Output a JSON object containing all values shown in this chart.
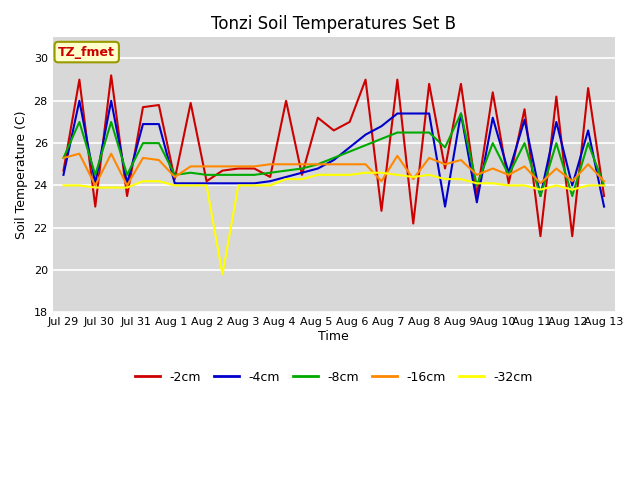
{
  "title": "Tonzi Soil Temperatures Set B",
  "xlabel": "Time",
  "ylabel": "Soil Temperature (C)",
  "ylim": [
    18,
    31
  ],
  "yticks": [
    18,
    20,
    22,
    24,
    26,
    28,
    30
  ],
  "annotation_text": "TZ_fmet",
  "annotation_color": "#cc0000",
  "annotation_bg": "#ffffcc",
  "annotation_border": "#999900",
  "fig_bg_color": "#ffffff",
  "plot_bg": "#d8d8d8",
  "series": {
    "-2cm": {
      "color": "#cc0000",
      "linewidth": 1.5,
      "values": [
        24.7,
        29.0,
        23.0,
        29.2,
        23.5,
        27.7,
        27.8,
        24.3,
        27.9,
        24.2,
        24.7,
        24.8,
        24.8,
        24.4,
        28.0,
        24.5,
        27.2,
        26.6,
        27.0,
        29.0,
        22.8,
        29.0,
        22.2,
        28.8,
        24.8,
        28.8,
        23.5,
        28.4,
        24.1,
        27.6,
        21.6,
        28.2,
        21.6,
        28.6,
        23.5
      ]
    },
    "-4cm": {
      "color": "#0000cc",
      "linewidth": 1.5,
      "values": [
        24.5,
        28.0,
        24.1,
        28.0,
        24.1,
        26.9,
        26.9,
        24.1,
        24.1,
        24.1,
        24.1,
        24.1,
        24.1,
        24.2,
        24.4,
        24.6,
        24.8,
        25.2,
        25.8,
        26.4,
        26.8,
        27.4,
        27.4,
        27.4,
        23.0,
        27.4,
        23.2,
        27.2,
        24.6,
        27.1,
        23.5,
        27.0,
        24.0,
        26.6,
        23.0
      ]
    },
    "-8cm": {
      "color": "#00aa00",
      "linewidth": 1.5,
      "values": [
        25.3,
        27.0,
        24.5,
        27.0,
        24.5,
        26.0,
        26.0,
        24.5,
        24.6,
        24.5,
        24.5,
        24.5,
        24.5,
        24.6,
        24.7,
        24.8,
        25.0,
        25.3,
        25.6,
        25.9,
        26.2,
        26.5,
        26.5,
        26.5,
        25.8,
        27.4,
        24.0,
        26.0,
        24.5,
        26.0,
        23.5,
        26.0,
        23.5,
        26.0,
        24.0
      ]
    },
    "-16cm": {
      "color": "#ff8800",
      "linewidth": 1.5,
      "values": [
        25.3,
        25.5,
        24.0,
        25.5,
        24.0,
        25.3,
        25.2,
        24.4,
        24.9,
        24.9,
        24.9,
        24.9,
        24.9,
        25.0,
        25.0,
        25.0,
        25.0,
        25.0,
        25.0,
        25.0,
        24.2,
        25.4,
        24.3,
        25.3,
        25.0,
        25.2,
        24.5,
        24.8,
        24.5,
        24.9,
        24.1,
        24.8,
        24.2,
        25.0,
        24.2
      ]
    },
    "-32cm": {
      "color": "#ffff00",
      "linewidth": 1.5,
      "values": [
        24.0,
        24.0,
        23.9,
        23.9,
        23.9,
        24.2,
        24.2,
        24.0,
        24.0,
        24.0,
        19.8,
        24.0,
        24.0,
        24.0,
        24.3,
        24.3,
        24.5,
        24.5,
        24.5,
        24.6,
        24.6,
        24.5,
        24.4,
        24.5,
        24.3,
        24.3,
        24.1,
        24.1,
        24.0,
        24.0,
        23.8,
        24.0,
        23.8,
        24.0,
        24.0
      ]
    }
  },
  "x_tick_labels": [
    "Jul 29",
    "Jul 30",
    "Jul 31",
    "Aug 1",
    "Aug 2",
    "Aug 3",
    "Aug 4",
    "Aug 5",
    "Aug 6",
    "Aug 7",
    "Aug 8",
    "Aug 9",
    "Aug 10",
    "Aug 11",
    "Aug 12",
    "Aug 13"
  ],
  "legend_order": [
    "-2cm",
    "-4cm",
    "-8cm",
    "-16cm",
    "-32cm"
  ],
  "title_fontsize": 12,
  "axis_label_fontsize": 9,
  "tick_fontsize": 8,
  "legend_fontsize": 9
}
